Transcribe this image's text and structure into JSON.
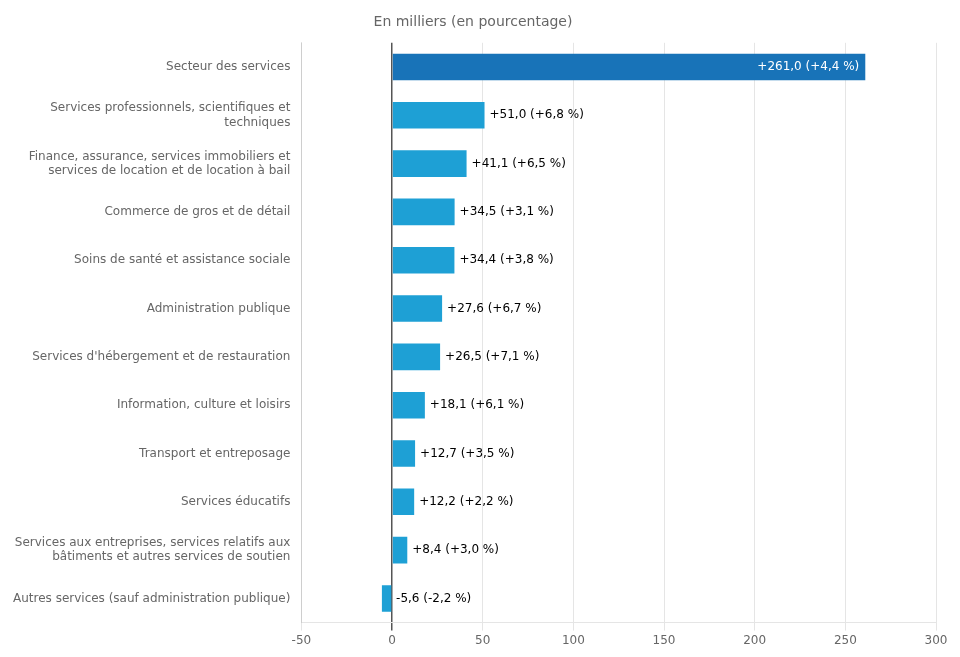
{
  "chart_data": {
    "type": "bar",
    "orientation": "horizontal",
    "title": "En milliers (en pourcentage)",
    "categories": [
      "Autres services (sauf administration publique)",
      "Services aux entreprises, services relatifs aux\nbâtiments et autres services de soutien",
      "Services éducatifs",
      "Transport et entreposage",
      "Information, culture et loisirs",
      "Services d'hébergement et de restauration",
      "Administration publique",
      "Soins de santé et assistance sociale",
      "Commerce de gros et de détail",
      "Finance, assurance, services immobiliers et\nservices de location et de location à bail",
      "Services professionnels, scientifiques et\ntechniques",
      "Secteur des services"
    ],
    "values": [
      -5.6,
      8.4,
      12.2,
      12.7,
      18.1,
      26.5,
      27.6,
      34.4,
      34.5,
      41.1,
      51.0,
      261.0
    ],
    "value_labels": [
      "-5,6 (-2,2 %)",
      "+8,4 (+3,0 %)",
      "+12,2 (+2,2 %)",
      "+12,7 (+3,5 %)",
      "+18,1 (+6,1 %)",
      "+26,5 (+7,1 %)",
      "+27,6 (+6,7 %)",
      "+34,4 (+3,8 %)",
      "+34,5 (+3,1 %)",
      "+41,1 (+6,5 %)",
      "+51,0 (+6,8 %)",
      "+261,0 (+4,4 %)"
    ],
    "data_labels": true,
    "colors": [
      "#1EA0D5",
      "#1EA0D5",
      "#1EA0D5",
      "#1EA0D5",
      "#1EA0D5",
      "#1EA0D5",
      "#1EA0D5",
      "#1EA0D5",
      "#1EA0D5",
      "#1EA0D5",
      "#1EA0D5",
      "#1873B8"
    ],
    "xlim": [
      -50,
      300
    ],
    "xticks": [
      -50,
      0,
      50,
      100,
      150,
      200,
      250,
      300
    ],
    "grid": true
  }
}
